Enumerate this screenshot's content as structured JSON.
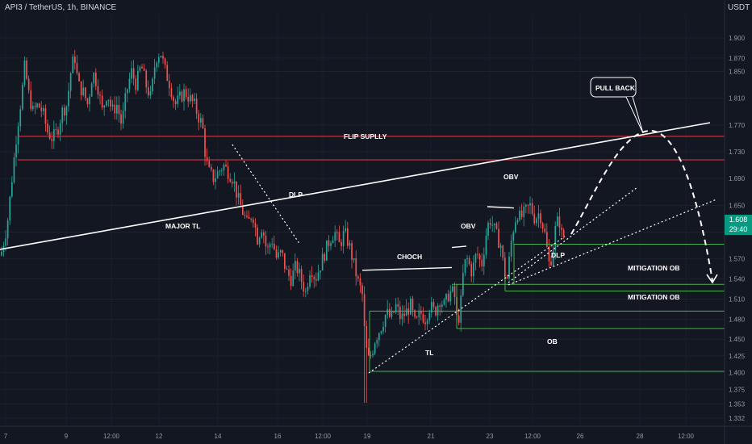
{
  "header": {
    "symbol_text": "API3 / TetherUS, 1h, BINANCE",
    "currency": "USDT"
  },
  "price": {
    "current": "1.608",
    "countdown": "29:40"
  },
  "colors": {
    "background": "#131722",
    "up": "#26a69a",
    "down": "#ef5350",
    "supply_lines": "#f23645",
    "zone_lines": "#4caf50",
    "annotations": "#ffffff",
    "axis_text": "#9598a1"
  },
  "chart_data": {
    "type": "candlestick",
    "ylim": [
      1.32,
      1.935
    ],
    "y_ticks": [
      "1.900",
      "1.870",
      "1.850",
      "1.810",
      "1.770",
      "1.730",
      "1.690",
      "1.650",
      "1.610",
      "1.570",
      "1.540",
      "1.510",
      "1.480",
      "1.450",
      "1.425",
      "1.400",
      "1.375",
      "1.353",
      "1.332"
    ],
    "x_ticks": [
      "7",
      "9",
      "12:00",
      "12",
      "14",
      "16",
      "12:00",
      "19",
      "21",
      "23",
      "12:00",
      "26",
      "28",
      "12:00"
    ],
    "price_path": [
      [
        0,
        1.575
      ],
      [
        8,
        1.62
      ],
      [
        14,
        1.69
      ],
      [
        20,
        1.76
      ],
      [
        26,
        1.815
      ],
      [
        30,
        1.86
      ],
      [
        34,
        1.82
      ],
      [
        40,
        1.79
      ],
      [
        46,
        1.8
      ],
      [
        52,
        1.79
      ],
      [
        58,
        1.76
      ],
      [
        64,
        1.75
      ],
      [
        70,
        1.76
      ],
      [
        76,
        1.79
      ],
      [
        82,
        1.8
      ],
      [
        88,
        1.86
      ],
      [
        92,
        1.87
      ],
      [
        96,
        1.83
      ],
      [
        102,
        1.82
      ],
      [
        108,
        1.8
      ],
      [
        114,
        1.85
      ],
      [
        120,
        1.83
      ],
      [
        126,
        1.79
      ],
      [
        132,
        1.82
      ],
      [
        138,
        1.79
      ],
      [
        144,
        1.8
      ],
      [
        150,
        1.77
      ],
      [
        156,
        1.82
      ],
      [
        162,
        1.85
      ],
      [
        168,
        1.83
      ],
      [
        174,
        1.86
      ],
      [
        180,
        1.83
      ],
      [
        186,
        1.81
      ],
      [
        192,
        1.87
      ],
      [
        198,
        1.88
      ],
      [
        204,
        1.85
      ],
      [
        210,
        1.83
      ],
      [
        216,
        1.8
      ],
      [
        222,
        1.81
      ],
      [
        228,
        1.82
      ],
      [
        234,
        1.81
      ],
      [
        240,
        1.8
      ],
      [
        246,
        1.78
      ],
      [
        250,
        1.77
      ],
      [
        254,
        1.72
      ],
      [
        258,
        1.7
      ],
      [
        264,
        1.69
      ],
      [
        270,
        1.7
      ],
      [
        276,
        1.71
      ],
      [
        282,
        1.7
      ],
      [
        288,
        1.69
      ],
      [
        294,
        1.66
      ],
      [
        300,
        1.64
      ],
      [
        306,
        1.62
      ],
      [
        312,
        1.64
      ],
      [
        318,
        1.6
      ],
      [
        324,
        1.62
      ],
      [
        330,
        1.58
      ],
      [
        336,
        1.6
      ],
      [
        342,
        1.57
      ],
      [
        348,
        1.58
      ],
      [
        354,
        1.55
      ],
      [
        360,
        1.54
      ],
      [
        366,
        1.56
      ],
      [
        372,
        1.54
      ],
      [
        378,
        1.52
      ],
      [
        384,
        1.56
      ],
      [
        390,
        1.54
      ],
      [
        396,
        1.56
      ],
      [
        402,
        1.58
      ],
      [
        408,
        1.6
      ],
      [
        414,
        1.61
      ],
      [
        420,
        1.59
      ],
      [
        426,
        1.61
      ],
      [
        432,
        1.59
      ],
      [
        436,
        1.57
      ],
      [
        440,
        1.55
      ],
      [
        444,
        1.53
      ],
      [
        448,
        1.52
      ],
      [
        452,
        1.44
      ],
      [
        456,
        1.42
      ],
      [
        460,
        1.43
      ],
      [
        464,
        1.45
      ],
      [
        468,
        1.46
      ],
      [
        472,
        1.47
      ],
      [
        478,
        1.49
      ],
      [
        484,
        1.48
      ],
      [
        490,
        1.5
      ],
      [
        496,
        1.48
      ],
      [
        502,
        1.49
      ],
      [
        508,
        1.5
      ],
      [
        514,
        1.47
      ],
      [
        520,
        1.49
      ],
      [
        526,
        1.48
      ],
      [
        532,
        1.5
      ],
      [
        538,
        1.49
      ],
      [
        544,
        1.51
      ],
      [
        550,
        1.5
      ],
      [
        556,
        1.52
      ],
      [
        562,
        1.52
      ],
      [
        566,
        1.47
      ],
      [
        570,
        1.5
      ],
      [
        574,
        1.56
      ],
      [
        578,
        1.57
      ],
      [
        584,
        1.55
      ],
      [
        590,
        1.58
      ],
      [
        596,
        1.56
      ],
      [
        602,
        1.61
      ],
      [
        606,
        1.63
      ],
      [
        610,
        1.62
      ],
      [
        616,
        1.6
      ],
      [
        620,
        1.59
      ],
      [
        624,
        1.55
      ],
      [
        628,
        1.54
      ],
      [
        632,
        1.59
      ],
      [
        636,
        1.62
      ],
      [
        640,
        1.64
      ],
      [
        644,
        1.63
      ],
      [
        650,
        1.64
      ],
      [
        656,
        1.65
      ],
      [
        662,
        1.63
      ],
      [
        668,
        1.64
      ],
      [
        674,
        1.61
      ],
      [
        680,
        1.56
      ],
      [
        684,
        1.58
      ],
      [
        688,
        1.62
      ],
      [
        692,
        1.63
      ],
      [
        696,
        1.6
      ],
      [
        700,
        1.608
      ]
    ],
    "horizontal_levels": [
      {
        "kind": "supply",
        "value": 1.753
      },
      {
        "kind": "supply",
        "value": 1.718
      },
      {
        "kind": "structure",
        "value": 1.556
      },
      {
        "kind": "structure",
        "value": 1.648
      },
      {
        "kind": "zone",
        "value": 1.595
      },
      {
        "kind": "zone",
        "value": 1.536
      },
      {
        "kind": "zone",
        "value": 1.524
      },
      {
        "kind": "zone",
        "value": 1.493
      },
      {
        "kind": "zone",
        "value": 1.468
      },
      {
        "kind": "zone",
        "value": 1.405
      }
    ],
    "annotations": {
      "flip_supply": "FLIP SUPLLY",
      "major_tl": "MAJOR TL",
      "dlp_left": "DLP",
      "choch": "CHOCH",
      "obv_low": "OBV",
      "obv_high": "OBV",
      "dlp_right": "DLP",
      "mitigation_ob_1": "MITIGATION OB",
      "mitigation_ob_2": "MITIGATION OB",
      "tl": "TL",
      "ob": "OB",
      "pull_back": "PULL BACK"
    }
  }
}
